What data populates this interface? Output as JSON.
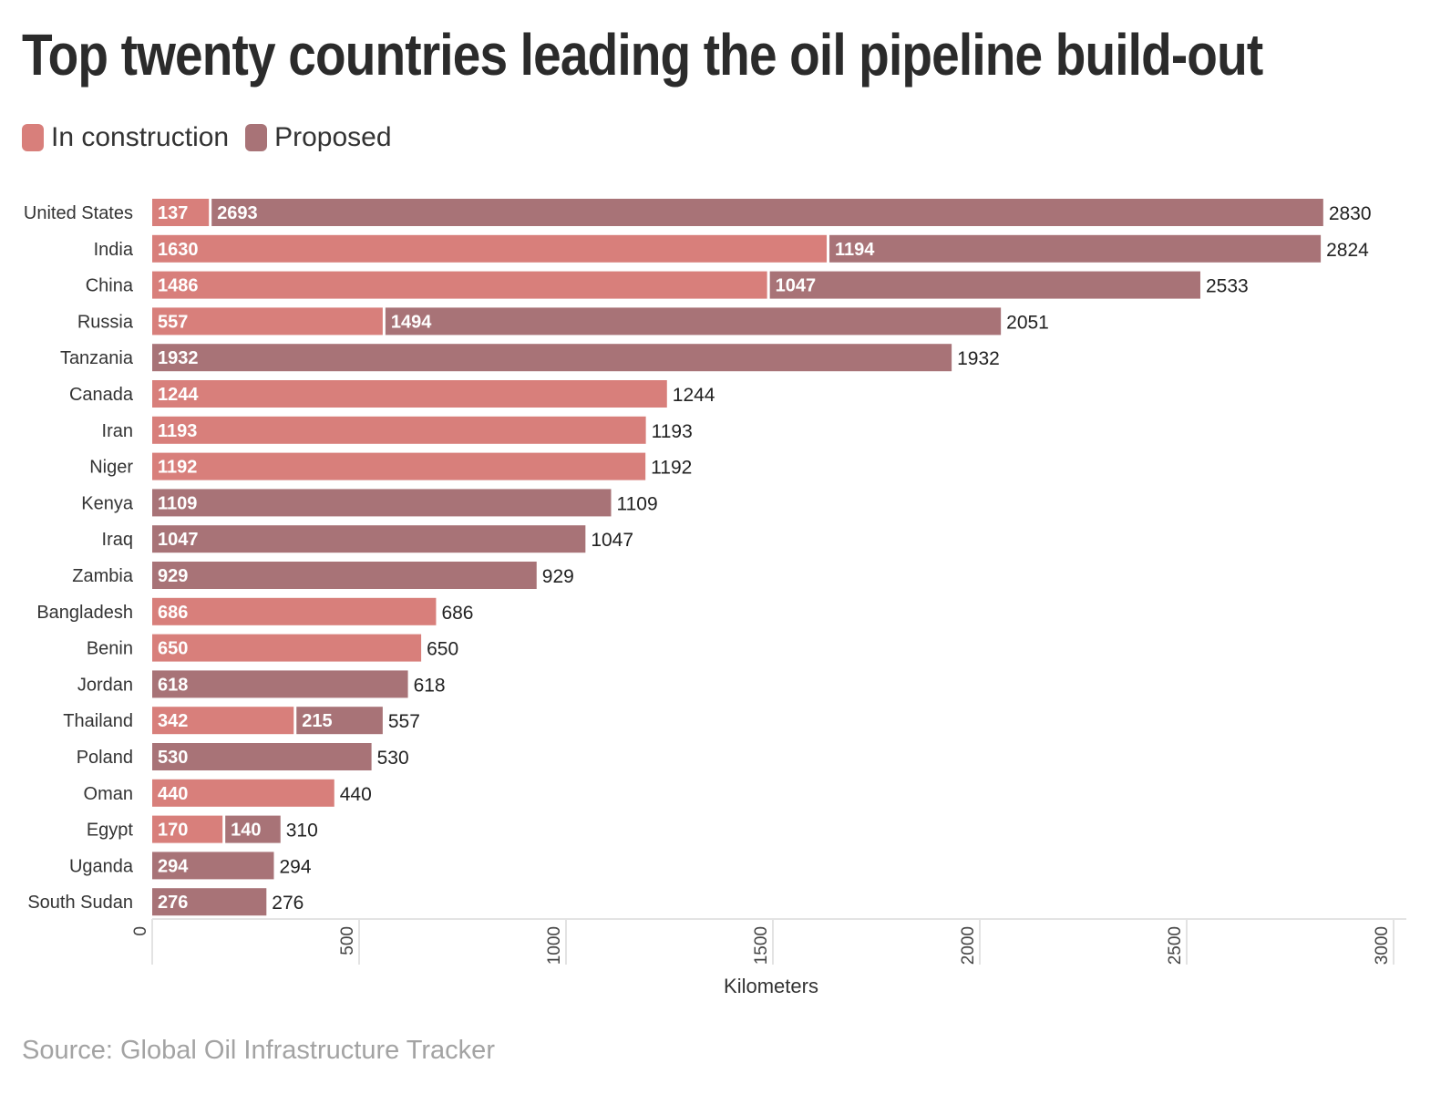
{
  "title": "Top twenty countries leading the oil pipeline build-out",
  "source": "Source: Global Oil Infrastructure Tracker",
  "colors": {
    "in_construction": "#d87f7b",
    "proposed": "#a87377",
    "background": "#ffffff",
    "axis": "#e3e3e3"
  },
  "legend": [
    {
      "label": "In construction",
      "color": "#d87f7b"
    },
    {
      "label": "Proposed",
      "color": "#a87377"
    }
  ],
  "chart_data": {
    "type": "bar",
    "orientation": "horizontal",
    "stacked": true,
    "title": "Top twenty countries leading the oil pipeline build-out",
    "xlabel": "Kilometers",
    "ylabel": "",
    "xlim": [
      0,
      3000
    ],
    "xticks": [
      0,
      500,
      1000,
      1500,
      2000,
      2500,
      3000
    ],
    "grid": false,
    "legend_position": "top-left",
    "categories": [
      "United States",
      "India",
      "China",
      "Russia",
      "Tanzania",
      "Canada",
      "Iran",
      "Niger",
      "Kenya",
      "Iraq",
      "Zambia",
      "Bangladesh",
      "Benin",
      "Jordan",
      "Thailand",
      "Poland",
      "Oman",
      "Egypt",
      "Uganda",
      "South Sudan"
    ],
    "series": [
      {
        "name": "In construction",
        "color": "#d87f7b",
        "values": [
          137,
          1630,
          1486,
          557,
          0,
          1244,
          1193,
          1192,
          0,
          0,
          0,
          686,
          650,
          0,
          342,
          0,
          440,
          170,
          0,
          0
        ]
      },
      {
        "name": "Proposed",
        "color": "#a87377",
        "values": [
          2693,
          1194,
          1047,
          1494,
          1932,
          0,
          0,
          0,
          1109,
          1047,
          929,
          0,
          0,
          618,
          215,
          530,
          0,
          140,
          294,
          276
        ]
      }
    ],
    "totals": [
      2830,
      2824,
      2533,
      2051,
      1932,
      1244,
      1193,
      1192,
      1109,
      1047,
      929,
      686,
      650,
      618,
      557,
      530,
      440,
      310,
      294,
      276
    ]
  }
}
